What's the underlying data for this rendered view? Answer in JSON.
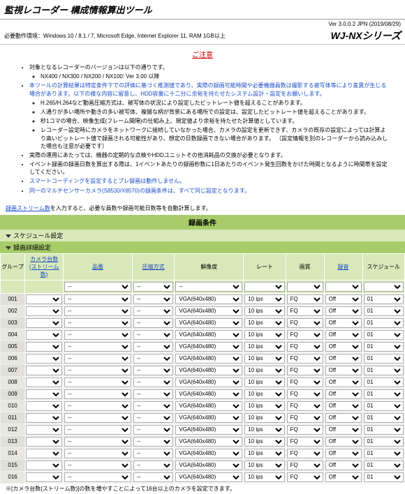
{
  "header": {
    "title": "監視レコーダー 構成情報算出ツール",
    "version": "Ver 3.0.0.2 JPN (2019/08/29)",
    "env": "必要動作環境：Windows 10 / 8.1 / 7, Microsoft Edge, Internet Explorer 11, RAM 1GB以上",
    "series": "WJ-NXシリーズ"
  },
  "notice": {
    "title": "ご注意",
    "items": [
      {
        "text": "対象となるレコーダーのバージョンは以下の通りです。",
        "sub": [
          {
            "text": "NX400 / NX300 / NX200 / NX100: Ver 3.00 以降"
          }
        ]
      },
      {
        "text": "本ツールの計算結果は特定条件下での評価に基づく推測値であり、実際の録画可能時間や必要機器員数は撮影する被写体等により差異が生じる場合があります。以下の様な内容に留意し、HDD容量に十二分に余裕を持たせたシステム設計・設定をお願いします。",
        "blue": true,
        "sub": [
          {
            "text": "H.265/H.264など動画圧縮方式は、被写体の状況により設定したビットレート値を超えることがあります。"
          },
          {
            "text": "人通りが多い場所や動きの多い被写体、複雑な柄が背景にある場所での設定は、設定したビットレート値を超えることがあります。"
          },
          {
            "text": "秒1コマの場合、映像生成(フレーム間隔)の仕組み上、規定値より余裕を持たせた計算値としています。"
          },
          {
            "text": "レコーダー設定時にカメラをネットワークに接続していなかった場合、カメラの設定を更新できず、カメラの既存の設定によっては計算より高いビットレート値で録画される可能性があり、想定の日数録画できない場合があります。\n（設定情報を別のレコーダーから読み込みした場合も注意が必要です）"
          }
        ]
      },
      {
        "text": "実際の運用にあたっては、機器の定期的な点検やHDDユニットその他消耗品の交換が必要となります。"
      },
      {
        "text": "イベント録画の録画日数を算出する際は、1イベントあたりの録画秒数に1日あたりのイベント発生回数をかけた時間となるように時間帯を設定してください。"
      },
      {
        "text": "スマートコーディングを設定するとプレ録画は動作しません。",
        "blue": true
      },
      {
        "text": "同一のマルチセンサーカメラ(S8530/X8570)の録画条件は、すべて同じ設定となります。",
        "blue": true
      }
    ]
  },
  "intro": {
    "link": "録画ストリーム数",
    "text": "を入力すると、必要な員数や録画可能日数等を自動計算します。"
  },
  "section": {
    "title": "録画条件",
    "sub1": "スケジュール設定",
    "sub2": "録画詳細設定"
  },
  "table": {
    "headers": {
      "group": "グループ",
      "cameras": "カメラ台数",
      "cameras2": "(ストリーム数)",
      "model": "品番",
      "compress": "圧縮方式",
      "resolution": "解像度",
      "rate": "レート",
      "quality": "画質",
      "audio": "録音",
      "schedule": "スケジュール"
    },
    "default_row": {
      "resolution": "VGA(640x480)",
      "rate": "10 ips",
      "quality": "FQ",
      "audio": "Off",
      "schedule": "01"
    },
    "filter_row": {
      "model": "--",
      "compress": "--",
      "resolution": "--"
    },
    "rows": [
      "001",
      "002",
      "003",
      "004",
      "005",
      "006",
      "007",
      "008",
      "009",
      "010",
      "011",
      "012",
      "013",
      "014",
      "015",
      "016"
    ]
  },
  "footnote": "※[カメラ台数(ストリーム数)]の数を増やすことによって16台以上のカメラを設定できます。"
}
